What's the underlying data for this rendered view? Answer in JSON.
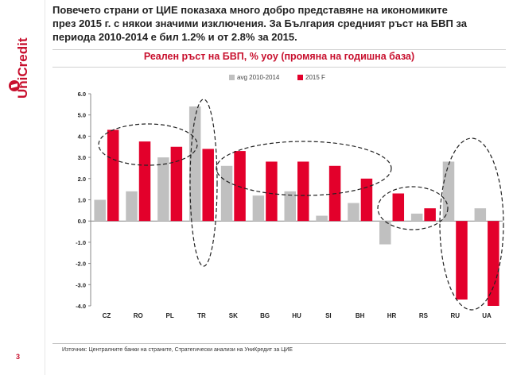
{
  "brand": {
    "name": "UniCredit",
    "color": "#c8102e"
  },
  "slide": {
    "page_number": "3",
    "headline_lines": [
      "Повечето страни от ЦИЕ показаха много добро представяне на икономиките",
      "през 2015 г. с някои значими изключения. За България средният ръст на БВП за",
      "периода 2010-2014 е бил 1.2% и от 2.8% за 2015."
    ],
    "source": "Източник: Централните банки на страните, Стратегически анализи на УниКредит за ЦИЕ"
  },
  "colors": {
    "avg": "#c0c0c0",
    "forecast": "#e3002b",
    "title": "#c8102e"
  },
  "chart_data": {
    "type": "bar",
    "title": "Реален ръст на БВП, % yoy (промяна на годишна база)",
    "categories": [
      "CZ",
      "RO",
      "PL",
      "TR",
      "SK",
      "BG",
      "HU",
      "SI",
      "BH",
      "HR",
      "RS",
      "RU",
      "UA"
    ],
    "series": [
      {
        "name": "avg 2010-2014",
        "values": [
          1.0,
          1.4,
          3.0,
          5.4,
          2.6,
          1.2,
          1.4,
          0.25,
          0.85,
          -1.1,
          0.35,
          2.8,
          0.6
        ]
      },
      {
        "name": "2015 F",
        "values": [
          4.3,
          3.75,
          3.5,
          3.4,
          3.3,
          2.8,
          2.8,
          2.6,
          2.0,
          1.3,
          0.6,
          -3.7,
          -4.0
        ]
      }
    ],
    "yticks": [
      "6.0",
      "5.0",
      "4.0",
      "3.0",
      "2.0",
      "1.0",
      "0.0",
      "-1.0",
      "-2.0",
      "-3.0",
      "-4.0"
    ],
    "ylim": [
      -4,
      6
    ],
    "legend_position": "top-center",
    "annotations": "dashed ellipses around CZ-PL, TR, SK-SI, HR-RS, RU-UA"
  }
}
